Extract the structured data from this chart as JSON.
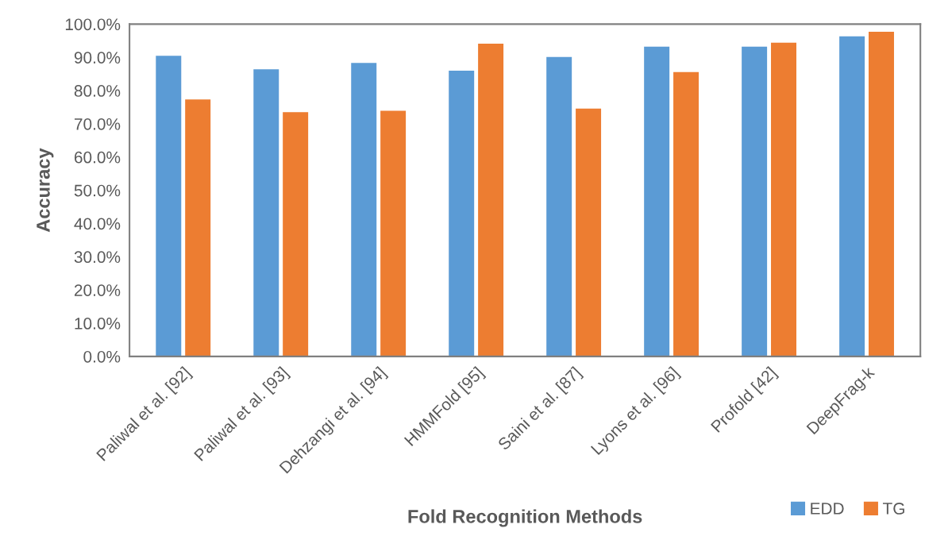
{
  "chart_data": {
    "type": "bar",
    "xlabel": "Fold Recognition Methods",
    "ylabel": "Accuracy",
    "categories": [
      "Paliwal et al. [92]",
      "Paliwal et al. [93]",
      "Dehzangi et al. [94]",
      "HMMFold [95]",
      "Saini et al. [87]",
      "Lyons et al. [96]",
      "Profold [42]",
      "DeepFrag-k"
    ],
    "series": [
      {
        "name": "EDD",
        "color": "#5b9bd5",
        "values": [
          90.5,
          86.4,
          88.3,
          86.0,
          90.1,
          93.2,
          93.2,
          96.3
        ]
      },
      {
        "name": "TG",
        "color": "#ed7d31",
        "values": [
          77.3,
          73.5,
          73.9,
          94.1,
          74.6,
          85.6,
          94.4,
          97.7
        ]
      }
    ],
    "ylim": [
      0,
      100
    ],
    "yticks": [
      {
        "value": 0,
        "label": "0.0%"
      },
      {
        "value": 10,
        "label": "10.0%"
      },
      {
        "value": 20,
        "label": "20.0%"
      },
      {
        "value": 30,
        "label": "30.0%"
      },
      {
        "value": 40,
        "label": "40.0%"
      },
      {
        "value": 50,
        "label": "50.0%"
      },
      {
        "value": 60,
        "label": "60.0%"
      },
      {
        "value": 70,
        "label": "70.0%"
      },
      {
        "value": 80,
        "label": "80.0%"
      },
      {
        "value": 90,
        "label": "90.0%"
      },
      {
        "value": 100,
        "label": "100.0%"
      }
    ],
    "grid": false,
    "legend": "bottom right"
  }
}
